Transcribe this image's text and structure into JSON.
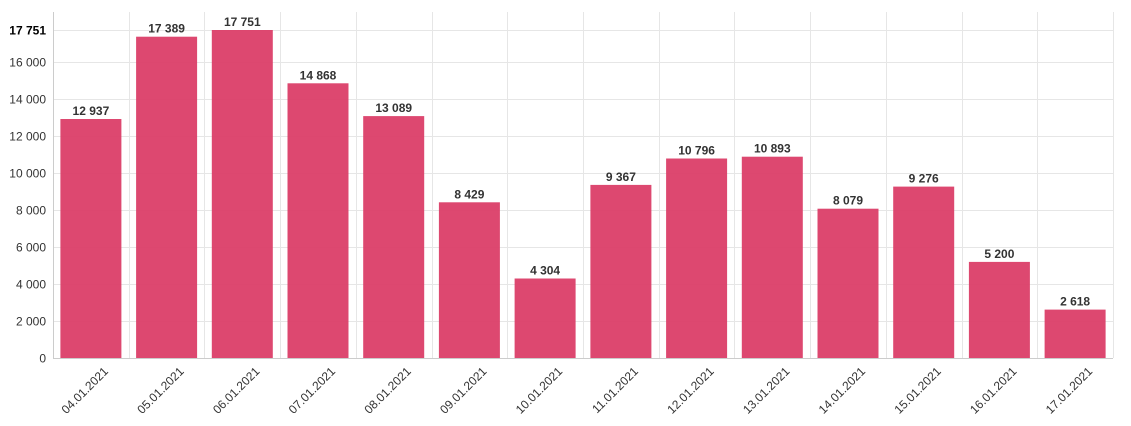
{
  "chart_data": {
    "type": "bar",
    "categories": [
      "04.01.2021",
      "05.01.2021",
      "06.01.2021",
      "07.01.2021",
      "08.01.2021",
      "09.01.2021",
      "10.01.2021",
      "11.01.2021",
      "12.01.2021",
      "13.01.2021",
      "14.01.2021",
      "15.01.2021",
      "16.01.2021",
      "17.01.2021"
    ],
    "values": [
      12937,
      17389,
      17751,
      14868,
      13089,
      8429,
      4304,
      9367,
      10796,
      10893,
      8079,
      9276,
      5200,
      2618
    ],
    "value_labels": [
      "12 937",
      "17 389",
      "17 751",
      "14 868",
      "13 089",
      "8 429",
      "4 304",
      "9 367",
      "10 796",
      "10 893",
      "8 079",
      "9 276",
      "5 200",
      "2 618"
    ],
    "yticks": [
      {
        "value": 0,
        "label": "0"
      },
      {
        "value": 2000,
        "label": "2 000"
      },
      {
        "value": 4000,
        "label": "4 000"
      },
      {
        "value": 6000,
        "label": "6 000"
      },
      {
        "value": 8000,
        "label": "8 000"
      },
      {
        "value": 10000,
        "label": "10 000"
      },
      {
        "value": 12000,
        "label": "12 000"
      },
      {
        "value": 14000,
        "label": "14 000"
      },
      {
        "value": 16000,
        "label": "16 000"
      },
      {
        "value": 17751,
        "label": "17 751",
        "bold": true
      }
    ],
    "ylim": [
      0,
      17751
    ],
    "grid": true,
    "legend": "none",
    "bar_color": "#db3e68",
    "title": "",
    "xlabel": "",
    "ylabel": ""
  }
}
